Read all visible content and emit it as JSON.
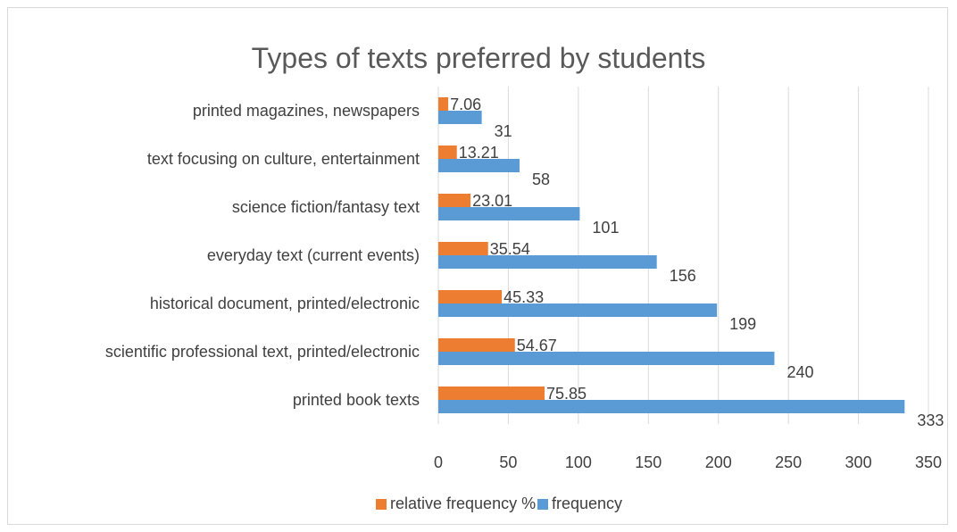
{
  "chart_data": {
    "type": "bar",
    "orientation": "horizontal",
    "title": "Types of texts preferred by students",
    "xlabel": "",
    "ylabel": "",
    "xlim": [
      0,
      350
    ],
    "x_ticks": [
      0,
      50,
      100,
      150,
      200,
      250,
      300,
      350
    ],
    "grid": "vertical",
    "legend_position": "bottom",
    "categories": [
      "printed magazines, newspapers",
      "text focusing on culture, entertainment",
      "science fiction/fantasy text",
      "everyday text (current events)",
      "historical document, printed/electronic",
      "scientific professional text, printed/electronic",
      "printed book texts"
    ],
    "series": [
      {
        "name": "relative frequency %",
        "color": "#ed7d31",
        "values": [
          7.06,
          13.21,
          23.01,
          35.54,
          45.33,
          54.67,
          75.85
        ],
        "labels": [
          "7.06",
          "13.21",
          "23.01",
          "35.54",
          "45.33",
          "54.67",
          "75.85"
        ]
      },
      {
        "name": "frequency",
        "color": "#5b9bd5",
        "values": [
          31,
          58,
          101,
          156,
          199,
          240,
          333
        ],
        "labels": [
          "31",
          "58",
          "101",
          "156",
          "199",
          "240",
          "333"
        ]
      }
    ]
  }
}
